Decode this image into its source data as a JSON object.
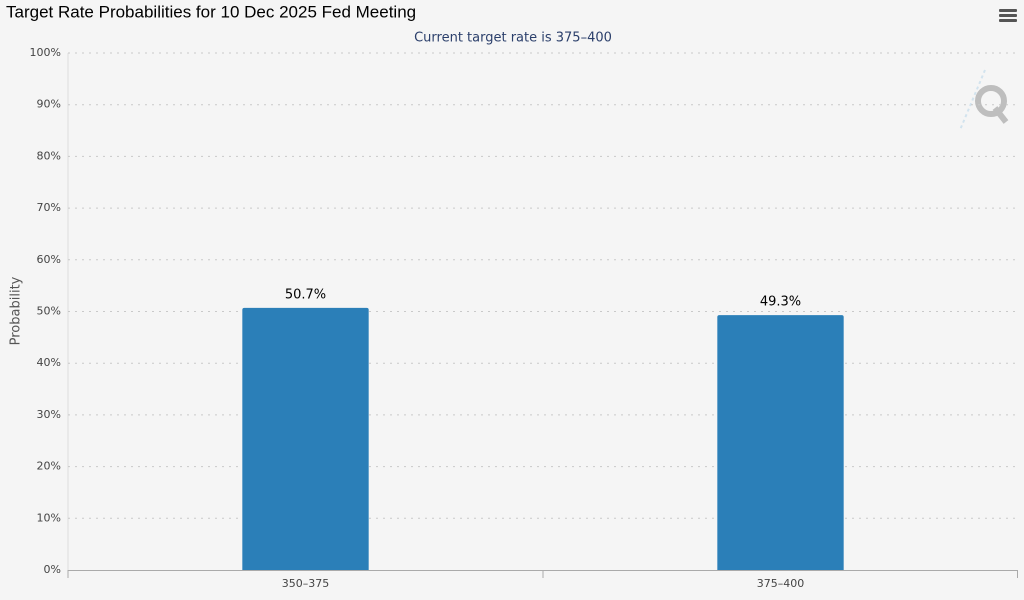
{
  "chart_data": {
    "type": "bar",
    "title": "Target Rate Probabilities for 10 Dec 2025 Fed Meeting",
    "subtitle": "Current target rate is 375–400",
    "y_label": "Probability",
    "categories": [
      "350–375",
      "375–400"
    ],
    "values": [
      50.7,
      49.3
    ],
    "value_labels": [
      "50.7%",
      "49.3%"
    ],
    "color": "#2b7fb8",
    "ylim": [
      0,
      100
    ],
    "yticks": [
      {
        "value": 0,
        "label": "0%"
      },
      {
        "value": 10,
        "label": "10%"
      },
      {
        "value": 20,
        "label": "20%"
      },
      {
        "value": 30,
        "label": "30%"
      },
      {
        "value": 40,
        "label": "40%"
      },
      {
        "value": 50,
        "label": "50%"
      },
      {
        "value": 60,
        "label": "60%"
      },
      {
        "value": 70,
        "label": "70%"
      },
      {
        "value": 80,
        "label": "80%"
      },
      {
        "value": 90,
        "label": "90%"
      },
      {
        "value": 100,
        "label": "100%"
      }
    ],
    "grid": true
  }
}
